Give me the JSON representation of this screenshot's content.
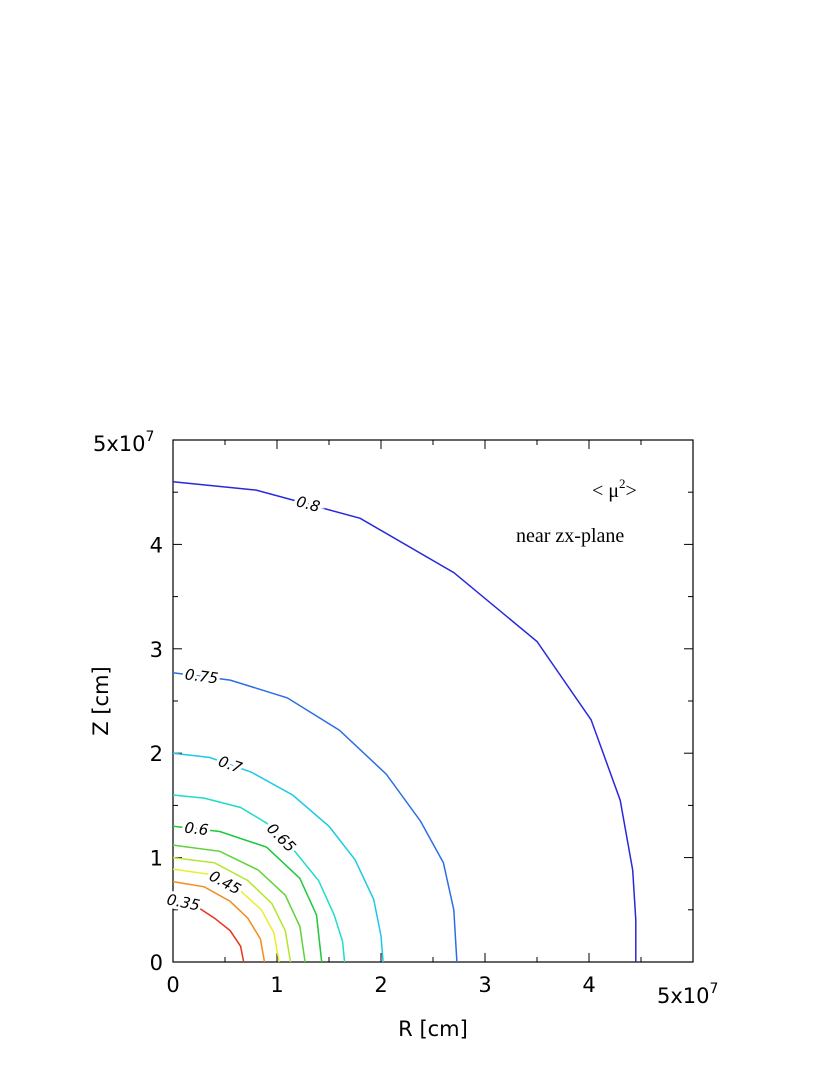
{
  "chart_data": {
    "type": "contour",
    "title": "< μ²>",
    "subtitle": "near zx-plane",
    "xlabel": "R [cm]",
    "ylabel": "Z [cm]",
    "xlim": [
      0,
      50000000.0
    ],
    "ylim": [
      0,
      50000000.0
    ],
    "x_tick_labels": [
      "0",
      "1",
      "2",
      "3",
      "4",
      "5x10^7"
    ],
    "y_tick_labels": [
      "0",
      "1",
      "2",
      "3",
      "4",
      "5x10^7"
    ],
    "x_exponent_label": {
      "base": "5x10",
      "exp": "7"
    },
    "y_exponent_label": {
      "base": "5x10",
      "exp": "7"
    },
    "title_parts": {
      "open": "< μ",
      "sup": "2",
      "close": ">"
    },
    "levels": [
      {
        "level": 0.35,
        "label": "0.35",
        "color": "#e8321e",
        "points": [
          [
            0.0,
            0.59
          ],
          [
            0.2,
            0.55
          ],
          [
            0.4,
            0.42
          ],
          [
            0.55,
            0.3
          ],
          [
            0.65,
            0.15
          ],
          [
            0.68,
            0.0
          ]
        ]
      },
      {
        "level": 0.4,
        "label": "",
        "color": "#f28c1e",
        "points": [
          [
            0.0,
            0.77
          ],
          [
            0.3,
            0.72
          ],
          [
            0.55,
            0.58
          ],
          [
            0.72,
            0.42
          ],
          [
            0.84,
            0.22
          ],
          [
            0.88,
            0.0
          ]
        ]
      },
      {
        "level": 0.45,
        "label": "0.45",
        "color": "#ecec2a",
        "points": [
          [
            0.0,
            0.89
          ],
          [
            0.35,
            0.84
          ],
          [
            0.65,
            0.68
          ],
          [
            0.85,
            0.5
          ],
          [
            0.97,
            0.28
          ],
          [
            1.02,
            0.0
          ]
        ]
      },
      {
        "level": 0.5,
        "label": "",
        "color": "#b4e62a",
        "points": [
          [
            0.0,
            1.0
          ],
          [
            0.4,
            0.95
          ],
          [
            0.72,
            0.78
          ],
          [
            0.95,
            0.56
          ],
          [
            1.08,
            0.3
          ],
          [
            1.13,
            0.0
          ]
        ]
      },
      {
        "level": 0.55,
        "label": "",
        "color": "#5fd23a",
        "points": [
          [
            0.0,
            1.12
          ],
          [
            0.45,
            1.06
          ],
          [
            0.82,
            0.88
          ],
          [
            1.08,
            0.64
          ],
          [
            1.22,
            0.34
          ],
          [
            1.27,
            0.0
          ]
        ]
      },
      {
        "level": 0.6,
        "label": "0.6",
        "color": "#1ec83c",
        "points": [
          [
            0.0,
            1.3
          ],
          [
            0.45,
            1.25
          ],
          [
            0.9,
            1.1
          ],
          [
            1.22,
            0.8
          ],
          [
            1.38,
            0.45
          ],
          [
            1.43,
            0.0
          ]
        ]
      },
      {
        "level": 0.65,
        "label": "0.65",
        "color": "#1edcc8",
        "points": [
          [
            0.0,
            1.6
          ],
          [
            0.3,
            1.57
          ],
          [
            0.65,
            1.48
          ],
          [
            0.9,
            1.33
          ],
          [
            1.18,
            1.05
          ],
          [
            1.4,
            0.78
          ],
          [
            1.55,
            0.45
          ],
          [
            1.63,
            0.2
          ],
          [
            1.65,
            0.0
          ]
        ]
      },
      {
        "level": 0.7,
        "label": "0.7",
        "color": "#1ec8e6",
        "points": [
          [
            0.0,
            2.0
          ],
          [
            0.35,
            1.96
          ],
          [
            0.75,
            1.82
          ],
          [
            1.15,
            1.6
          ],
          [
            1.5,
            1.3
          ],
          [
            1.75,
            0.98
          ],
          [
            1.93,
            0.6
          ],
          [
            2.0,
            0.25
          ],
          [
            2.02,
            0.0
          ]
        ]
      },
      {
        "level": 0.75,
        "label": "0.75",
        "color": "#2a6ee6",
        "points": [
          [
            0.0,
            2.77
          ],
          [
            0.55,
            2.7
          ],
          [
            1.1,
            2.53
          ],
          [
            1.6,
            2.22
          ],
          [
            2.05,
            1.8
          ],
          [
            2.38,
            1.35
          ],
          [
            2.6,
            0.95
          ],
          [
            2.7,
            0.5
          ],
          [
            2.73,
            0.0
          ]
        ]
      },
      {
        "level": 0.8,
        "label": "0.8",
        "color": "#2828dc",
        "points": [
          [
            0.0,
            4.6
          ],
          [
            0.8,
            4.52
          ],
          [
            1.8,
            4.25
          ],
          [
            2.7,
            3.73
          ],
          [
            3.5,
            3.07
          ],
          [
            4.02,
            2.32
          ],
          [
            4.3,
            1.55
          ],
          [
            4.42,
            0.88
          ],
          [
            4.45,
            0.4
          ],
          [
            4.45,
            0.0
          ]
        ]
      }
    ]
  }
}
